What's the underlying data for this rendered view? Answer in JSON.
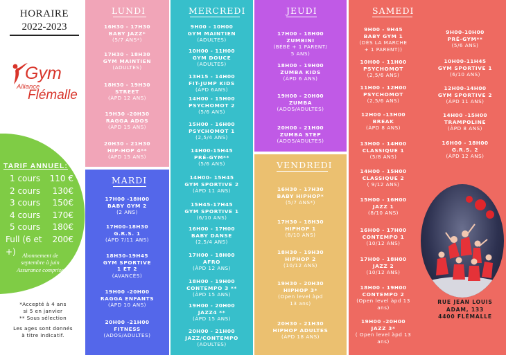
{
  "header": {
    "title": "HORAIRE",
    "years": "2022-2023"
  },
  "logo": {
    "initial": "G",
    "word": "ym",
    "alliance": "Alliance",
    "city": "Flémalle"
  },
  "tarif": {
    "heading": "TARIF ANNUEL:",
    "rows": [
      {
        "label": "1 cours",
        "price": "110 €"
      },
      {
        "label": "2 cours",
        "price": "130€"
      },
      {
        "label": "3 cours",
        "price": "150€"
      },
      {
        "label": "4 cours",
        "price": "170€"
      },
      {
        "label": "5 cours",
        "price": "180€"
      },
      {
        "label": "Full (6 et +)",
        "price": "200€"
      }
    ],
    "note1": "Abonnement de",
    "note2": "septembre à juin",
    "note3": "Assurance comprise"
  },
  "notes": {
    "n1": "*Accepté à 4 ans",
    "n2": "si 5 en janvier",
    "n3": "** Sous sélection",
    "n4": "Les ages sont donnés",
    "n5": "à titre indicatif."
  },
  "address": {
    "line1": "RUE JEAN LOUIS",
    "line2": "ADAM, 133",
    "line3": "4400 FLÉMALLE"
  },
  "colors": {
    "lundi": "#f1a5b8",
    "mardi": "#5467ea",
    "mercredi": "#37bfcb",
    "jeudi": "#c05ae6",
    "vendredi": "#ebc070",
    "samedi": "#ee6a61",
    "tarif": "#7fcc45",
    "day_green": "#3f9a3e",
    "logo_red": "#d8342a"
  },
  "days": {
    "lundi": {
      "name": "LUNDI",
      "entries": [
        {
          "time": "16H30 - 17H30",
          "name": "BABY JAZZ*",
          "sub": "(5/7 ANS*)"
        },
        {
          "time": "17H30 - 18H30",
          "name": "GYM MAINTIEN",
          "sub": "(ADULTES)"
        },
        {
          "time": "18H30 - 19H30",
          "name": "STREET",
          "sub": "(ÀPD 12 ANS)"
        },
        {
          "time": "19H30 -20H30",
          "name": "RAGGA ADOS",
          "sub": "(ÀPD 15 ANS)"
        },
        {
          "time": "20H30 - 21H30",
          "name": "HIP-HOP 4**",
          "sub": "(ÀPD 15 ANS)"
        }
      ]
    },
    "mardi": {
      "name": "MARDI",
      "entries": [
        {
          "time": "17H00 -18H00",
          "name": "BABY GYM 2",
          "sub": "(2 ANS)"
        },
        {
          "time": "17H00-18H30",
          "name": "G.R.S. 1",
          "sub": "(ÀPD 7/11 ANS)"
        },
        {
          "time": "18H30-19H45",
          "name": "GYM SPORTIVE",
          "name2": "1 ET 2",
          "sub": "(AVANCÉS)"
        },
        {
          "time": "19H00 -20H00",
          "name": "RAGGA ENFANTS",
          "sub": "(ÀPD 10 ANS)"
        },
        {
          "time": "20H00 -21H00",
          "name": "FITNESS",
          "sub": "(ADOS/ADULTES)"
        }
      ]
    },
    "mercredi": {
      "name": "MERCREDI",
      "entries": [
        {
          "time": "9H00 - 10H00",
          "name": "GYM MAINTIEN",
          "sub": "(ADULTES)"
        },
        {
          "time": "10H00 - 11H00",
          "name": "GYM DOUCE",
          "sub": "(ADULTES)"
        },
        {
          "time": "13H15 - 14H00",
          "name": "FIT-JUMP KIDS",
          "sub": "(ÀPD 6ANS)"
        },
        {
          "time": "14H00 - 15H00",
          "name": "PSYCHOMOT 2",
          "sub": "(5/6 ANS)"
        },
        {
          "time": "15H00 - 16H00",
          "name": "PSYCHOMOT 1",
          "sub": "(2,5/4 ANS)"
        },
        {
          "time": "14H00-15H45",
          "name": "PRÉ-GYM**",
          "sub": "(5/6 ANS)"
        },
        {
          "time": "14H00- 15H45",
          "name": "GYM SPORTIVE 2",
          "sub": "(ÀPD 11 ANS)"
        },
        {
          "time": "15H45-17H45",
          "name": "GYM SPORTIVE 1",
          "sub": "(6/10 ANS)"
        },
        {
          "time": "16H00 - 17H00",
          "name": "BABY DANSE",
          "sub": "(2,5/4 ANS)"
        },
        {
          "time": "17H00 - 18H00",
          "name": "AFRO",
          "sub": "(ÀPD 12 ANS)"
        },
        {
          "time": "18H00 - 19H00",
          "name": "CONTEMPO 3 **",
          "sub": "(ÀPD 15 ANS)"
        },
        {
          "time": "19H00 - 20H00",
          "name": "JAZZ4 **",
          "sub": "(ÀPD 15 ANS)"
        },
        {
          "time": "20H00 - 21H00",
          "name": "JAZZ/CONTEMPO",
          "sub": "(ADULTES)"
        }
      ]
    },
    "jeudi": {
      "name": "JEUDI",
      "entries": [
        {
          "time": "17H00 - 18H00",
          "name": "ZUMBINI",
          "sub": "(BÉBÉ + 1 PARENT/",
          "sub2": "5 ANS)"
        },
        {
          "time": "18H00 - 19H00",
          "name": "ZUMBA KIDS",
          "sub": "(ÀPD 6 ANS)"
        },
        {
          "time": "19H00 - 20H00",
          "name": "ZUMBA",
          "sub": "(ADOS/ADULTES)"
        },
        {
          "time": "20H00 - 21H00",
          "name": "ZUMBA STEP",
          "sub": "(ADOS/ADULTES)"
        }
      ]
    },
    "vendredi": {
      "name": "VENDREDI",
      "entries": [
        {
          "time": "16H30 - 17H30",
          "name": "BABY HIPHOP*",
          "sub": "(5/7 ANS*)"
        },
        {
          "time": "17H30 - 18H30",
          "name": "HIPHOP 1",
          "sub": "(8/10 ANS)"
        },
        {
          "time": "18H30 - 19H30",
          "name": "HIPHOP 2",
          "sub": "(10/12 ANS)"
        },
        {
          "time": "19H30 - 20H30",
          "name": "HIPHOP 3*",
          "sub": "(Open level àpd",
          "sub2": "13 ans)"
        },
        {
          "time": "20H30 - 21H30",
          "name": "HIPHOP ADULTES",
          "sub": "(ÀPD 18 ANS)"
        }
      ]
    },
    "samedi": {
      "name": "SAMEDI",
      "left": [
        {
          "time": "9H00 - 9H45",
          "name": "BABY GYM 1",
          "sub": "(DÈS LA MARCHE",
          "sub2": "+ 1 PARENT))"
        },
        {
          "time": "10H00 - 11H00",
          "name": "PSYCHOMOT",
          "sub": "(2,5/6 ANS)"
        },
        {
          "time": "11H00 - 12H00",
          "name": "PSYCHOMOT",
          "sub": "(2,5/6 ANS)"
        },
        {
          "time": "12H00 -13H00",
          "name": "BREAK",
          "sub": "(ÀPD 8 ANS)"
        },
        {
          "time": "13H00 - 14H00",
          "name": "CLASSIQUE 1",
          "sub": "(5/8 ANS)"
        },
        {
          "time": "14H00 - 15H00",
          "name": "CLASSIQUE 2",
          "sub": "( 9/12 ANS)"
        },
        {
          "time": "15H00 - 16H00",
          "name": "JAZZ 1",
          "sub": "(8/10 ANS)"
        },
        {
          "time": "16H00 - 17H00",
          "name": "CONTEMPO 1",
          "sub": "(10/12 ANS)"
        },
        {
          "time": "17H00 - 18H00",
          "name": "JAZZ 2",
          "sub": "(10/12 ANS)"
        },
        {
          "time": "18H00 - 19H00",
          "name": "CONTEMPO 2",
          "sub": "(Open level àpd 13",
          "sub2": "ans)"
        },
        {
          "time": "19H00 -20H00",
          "name": "JAZZ 3*",
          "sub": "( Open level àpd 13",
          "sub2": "ans)"
        }
      ],
      "right": [
        {
          "time": "9H00-10H00",
          "name": "PRÉ-GYM**",
          "sub": "(5/6 ANS)"
        },
        {
          "time": "10H00-11H45",
          "name": "GYM SPORTIVE 1",
          "sub": "(6/10 ANS)"
        },
        {
          "time": "12H00-14H00",
          "name": "GYM SPORTIVE 2",
          "sub": "(ÀPD 11 ANS)"
        },
        {
          "time": "14H00 -15H00",
          "name": "TRAMPOLINE",
          "sub": "(ÀPD 8 ANS)"
        },
        {
          "time": "16H00 - 18H00",
          "name": "G.R.S. 2",
          "sub": "(ÀPD 12 ANS)"
        }
      ]
    }
  }
}
